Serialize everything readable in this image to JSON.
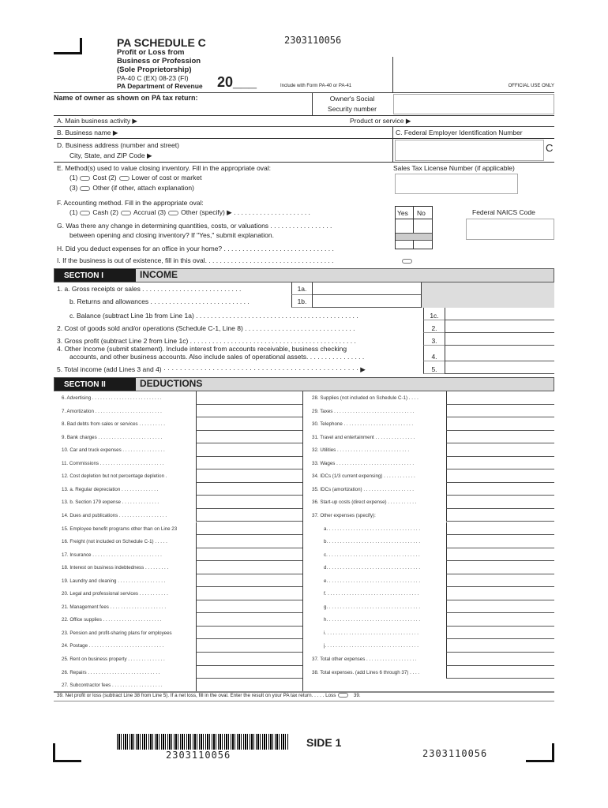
{
  "header": {
    "title": "PA SCHEDULE C",
    "subtitle": [
      "Profit or Loss from",
      "Business or Profession",
      "(Sole Proprietorship)"
    ],
    "form_code": "PA-40 C (EX) 08-23 (FI)",
    "department": "PA Department of Revenue",
    "year": "20___",
    "include": "Include with Form PA-40 or PA-41",
    "barcode_number": "2303110056",
    "official_use": "OFFICIAL USE ONLY"
  },
  "owner": {
    "name_label": "Name of owner as shown on PA tax return:",
    "ssn_label_1": "Owner's Social",
    "ssn_label_2": "Security number"
  },
  "rows": {
    "a": "A. Main business activity ▶",
    "product": "Product or service ▶",
    "b": "B. Business name ▶",
    "c": "C. Federal Employer Identification Number",
    "c_letter": "C",
    "d1": "D. Business address (number and street)",
    "d2": "City, State, and ZIP Code ▶",
    "e": "E. Method(s) used to value closing inventory. Fill in the appropriate oval:",
    "e1a": "(1)",
    "e1b": "Cost  (2)",
    "e1c": "Lower of cost or market",
    "e3a": "(3)",
    "e3b": "Other (if other, attach explanation)",
    "sales_tax": "Sales Tax License Number (if applicable)",
    "f": "F. Accounting method. Fill in the appropriate oval:",
    "f1": "(1)",
    "f2": "Cash  (2)",
    "f3": "Accrual  (3)",
    "f4": "Other (specify) ▶ . . . . . . . . . . . . . . . . . . . . .",
    "yes": "Yes",
    "no": "No",
    "naics": "Federal NAICS Code",
    "g1": "G. Was there any change in determining quantities, costs, or valuations  . . . . . . . . . . . . . . . . .",
    "g2": "between opening and closing inventory? If \"Yes,\" submit explanation.",
    "h": "H. Did you deduct expenses for an office in your home? . . . . . . . . . . . . . . . . . . . . . . . . . . . . . .",
    "i": "I. If the business is out of existence, fill in this oval. . . . . . . . . . . . . . . . . . . . . . . . . . . . . . . . . . ."
  },
  "section1": {
    "label": "SECTION I",
    "title": "INCOME",
    "l1a": "1. a. Gross receipts or sales  . . . . . . . . . . . . . . . . . . . . . . . . . . .",
    "n1a": "1a.",
    "l1b": "b. Returns and allowances . . . . . . . . . . . . . . . . . . . . . . . . . . .",
    "n1b": "1b.",
    "l1c": "c. Balance (subtract Line 1b from Line 1a) . . . . . . . . . . . . . . . . . . . . . . . . . . . . . . . . . . . . . . . . . . . .",
    "n1c": "1c.",
    "l2": "2. Cost of goods sold and/or operations (Schedule C-1, Line 8) . . . . . . . . . . . . . . . . . . . . . . . . . . . . . .",
    "n2": "2.",
    "l3": "3. Gross profit (subtract Line 2 from Line 1c) . . . . . . . . . . . . . . . . . . . . . . . . . . . . . . . . . . . . . . . . . . . . .",
    "n3": "3.",
    "l4a": "4. Other Income (submit statement). Include interest from accounts receivable, business checking",
    "l4b": "accounts, and other business accounts. Also include sales of operational assets.  . . . . . . . . . . . . . . .",
    "n4": "4.",
    "l5": "5. Total income (add Lines 3 and 4) · · · · · · · · · · · · · · · · · · · · · · · · · · · · · · · · · · · · · · · · · · · · · · · · ▶",
    "n5": "5."
  },
  "section2": {
    "label": "SECTION II",
    "title": "DEDUCTIONS",
    "left": [
      "6.  Advertising  . . . . . . . . . . . . . . . . . . . . . . . . . .",
      "7.  Amortization  . . . . . . . . . . . . . . . . . . . . . . . . .",
      "8.  Bad debts from sales or services  . . . . . . . . . .",
      "9.  Bank charges  . . . . . . . . . . . . . . . . . . . . . . . .",
      "10.  Car and truck expenses  . . . . . . . . . . . . . . . .",
      "11.  Commissions  . . . . . . . . . . . . . . . . . . . . . . . .",
      "12.  Cost depletion but not percentage depletion  .",
      "13.  a.      Regular depreciation  . . . . . . . . . . . . . .",
      "13.  b.      Section 179 expense  . . . . . . . . . . . . . .",
      "14.  Dues and publications . . . . . . . . . . . . . . . . . .",
      "15.  Employee benefit programs other than on Line 23",
      "16.  Freight (not included on Schedule C-1)  . . . . .",
      "17.  Insurance  . . . . . . . . . . . . . . . . . . . . . . . . . .",
      "18.  Interest on business indebtedness  . . . . . . . . .",
      "19.  Laundry and cleaning  . . . . . . . . . . . . . . . . . .",
      "20.  Legal and professional services  . . . . . . . . . . .",
      "21.  Management fees . . . . . . . . . . . . . . . . . . . . .",
      "22.  Office supplies  . . . . . . . . . . . . . . . . . . . . . .",
      "23.  Pension and profit-sharing plans for employees",
      "24.  Postage . . . . . . . . . . . . . . . . . . . . . . . . . . . .",
      "25.  Rent on business property  . . . . . . . . . . . . . .",
      "26.  Repairs  . . . . . . . . . . . . . . . . . . . . . . . . . . .",
      "27.  Subcontractor fees  . . . . . . . . . . . . . . . . . . ."
    ],
    "right": [
      "28.  Supplies (not included on Schedule C-1) . . . .",
      "29.  Taxes . . . . . . . . . . . . . . . . . . . . . . . . . . . . . .",
      "30.  Telephone  . . . . . . . . . . . . . . . . . . . . . . . . . .",
      "31.  Travel and entertainment  . . . . . . . . . . . . . . .",
      "32.  Utilities  . . . . . . . . . . . . . . . . . . . . . . . . . . .",
      "33.  Wages . . . . . . . . . . . . . . . . . . . . . . . . . . . . .",
      "34.  IDCs (1/3 current expensing)  . . . . . . . . . . . .",
      "35.  IDCs (amortization) . . . . . . . . . . . . . . . . . . .",
      "36.  Start-up costs (direct expense) . . . . . . . . . . .",
      "37.  Other expenses (specify):",
      "a. . . . . . . . . . . . . . . . . . . . . . . . . . . . . . . . . . .",
      "b. . . . . . . . . . . . . . . . . . . . . . . . . . . . . . . . . . .",
      "c. . . . . . . . . . . . . . . . . . . . . . . . . . . . . . . . . . .",
      "d. . . . . . . . . . . . . . . . . . . . . . . . . . . . . . . . . . .",
      "e. . . . . . . . . . . . . . . . . . . . . . . . . . . . . . . . . . .",
      "f. . . . . . . . . . . . . . . . . . . . . . . . . . . . . . . . . . .",
      "g. . . . . . . . . . . . . . . . . . . . . . . . . . . . . . . . . . .",
      "h. . . . . . . . . . . . . . . . . . . . . . . . . . . . . . . . . . .",
      "i. . . . . . . . . . . . . . . . . . . . . . . . . . . . . . . . . . .",
      "j. . . . . . . . . . . . . . . . . . . . . . . . . . . . . . . . . . .",
      "37.  Total other expenses . . . . . . . . . . . . . . . . . . .",
      "38.  Total expenses. (add Lines 6 through 37) . . . ."
    ],
    "l39": "39.  Net profit or loss (subtract Line 38 from Line 5). If a net loss, fill in the oval. Enter the result on your PA tax return.    . . . . Loss",
    "n39": "39."
  },
  "footer": {
    "barcode_number": "2303110056",
    "side": "SIDE 1",
    "form_number": "2303110056"
  }
}
